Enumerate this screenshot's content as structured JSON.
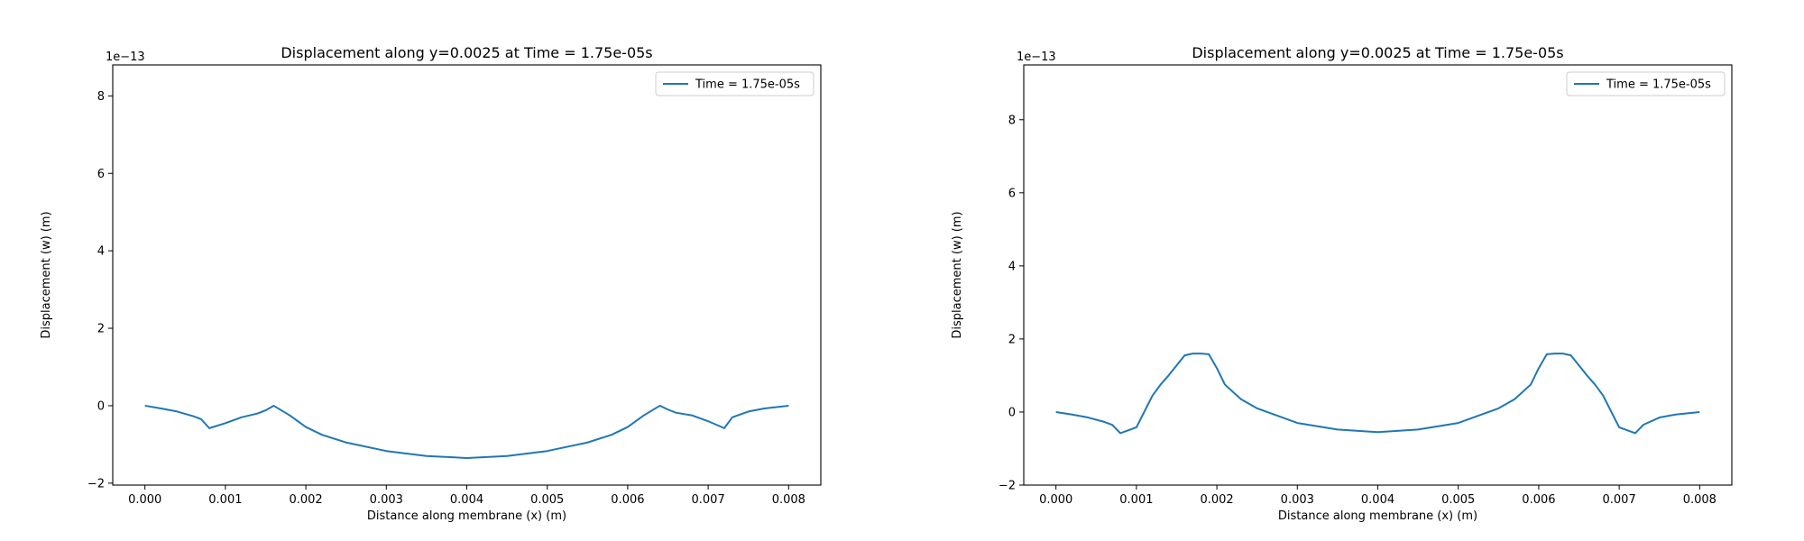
{
  "chart_data": [
    {
      "type": "line",
      "title": "Displacement along y=0.0025 at Time = 1.75e-05s",
      "xlabel": "Distance along membrane (x) (m)",
      "ylabel": "Displacement (w) (m)",
      "offset_text": "1e−13",
      "xlim": [
        -0.0004,
        0.0084
      ],
      "ylim": [
        -2.05,
        8.8
      ],
      "x_ticks": [
        0.0,
        0.001,
        0.002,
        0.003,
        0.004,
        0.005,
        0.006,
        0.007,
        0.008
      ],
      "x_tick_labels": [
        "0.000",
        "0.001",
        "0.002",
        "0.003",
        "0.004",
        "0.005",
        "0.006",
        "0.007",
        "0.008"
      ],
      "y_ticks": [
        -2,
        0,
        2,
        4,
        6,
        8
      ],
      "y_tick_labels": [
        "−2",
        "0",
        "2",
        "4",
        "6",
        "8"
      ],
      "grid": false,
      "legend_position": "top-right",
      "series": [
        {
          "name": "Time = 1.75e-05s",
          "color": "#1f77b4",
          "x": [
            0.0,
            0.0002,
            0.0004,
            0.0006,
            0.0007,
            0.0008,
            0.001,
            0.0012,
            0.0014,
            0.0015,
            0.0016,
            0.0018,
            0.002,
            0.0022,
            0.0025,
            0.003,
            0.0035,
            0.004,
            0.0045,
            0.005,
            0.0055,
            0.0058,
            0.006,
            0.0062,
            0.0064,
            0.0065,
            0.0066,
            0.0068,
            0.007,
            0.0072,
            0.0073,
            0.0075,
            0.0077,
            0.008
          ],
          "y": [
            0.0,
            -0.07,
            -0.15,
            -0.27,
            -0.35,
            -0.58,
            -0.45,
            -0.3,
            -0.2,
            -0.12,
            0.0,
            -0.25,
            -0.55,
            -0.75,
            -0.95,
            -1.17,
            -1.3,
            -1.35,
            -1.3,
            -1.17,
            -0.95,
            -0.75,
            -0.55,
            -0.25,
            0.0,
            -0.1,
            -0.18,
            -0.25,
            -0.4,
            -0.58,
            -0.3,
            -0.15,
            -0.07,
            0.0
          ]
        }
      ]
    },
    {
      "type": "line",
      "title": "Displacement along y=0.0025 at Time = 1.75e-05s",
      "xlabel": "Distance along membrane (x) (m)",
      "ylabel": "Displacement (w) (m)",
      "offset_text": "1e−13",
      "xlim": [
        -0.0004,
        0.0084
      ],
      "ylim": [
        -2.0,
        9.5
      ],
      "x_ticks": [
        0.0,
        0.001,
        0.002,
        0.003,
        0.004,
        0.005,
        0.006,
        0.007,
        0.008
      ],
      "x_tick_labels": [
        "0.000",
        "0.001",
        "0.002",
        "0.003",
        "0.004",
        "0.005",
        "0.006",
        "0.007",
        "0.008"
      ],
      "y_ticks": [
        -2,
        0,
        2,
        4,
        6,
        8
      ],
      "y_tick_labels": [
        "−2",
        "0",
        "2",
        "4",
        "6",
        "8"
      ],
      "grid": false,
      "legend_position": "top-right",
      "series": [
        {
          "name": "Time = 1.75e-05s",
          "color": "#1f77b4",
          "x": [
            0.0,
            0.0002,
            0.0004,
            0.0006,
            0.0007,
            0.0008,
            0.001,
            0.0012,
            0.0013,
            0.0014,
            0.0016,
            0.0017,
            0.0018,
            0.0019,
            0.002,
            0.0021,
            0.0023,
            0.0025,
            0.003,
            0.0035,
            0.004,
            0.0045,
            0.005,
            0.0055,
            0.0057,
            0.0059,
            0.006,
            0.0061,
            0.0062,
            0.0063,
            0.0064,
            0.0066,
            0.0067,
            0.0068,
            0.007,
            0.0072,
            0.0073,
            0.0075,
            0.0077,
            0.008
          ],
          "y": [
            0.0,
            -0.07,
            -0.15,
            -0.27,
            -0.35,
            -0.58,
            -0.42,
            0.45,
            0.75,
            1.0,
            1.55,
            1.6,
            1.6,
            1.58,
            1.2,
            0.75,
            0.35,
            0.1,
            -0.3,
            -0.48,
            -0.55,
            -0.48,
            -0.3,
            0.1,
            0.35,
            0.75,
            1.2,
            1.58,
            1.6,
            1.6,
            1.55,
            1.0,
            0.75,
            0.45,
            -0.42,
            -0.58,
            -0.35,
            -0.15,
            -0.07,
            0.0
          ]
        }
      ]
    }
  ]
}
